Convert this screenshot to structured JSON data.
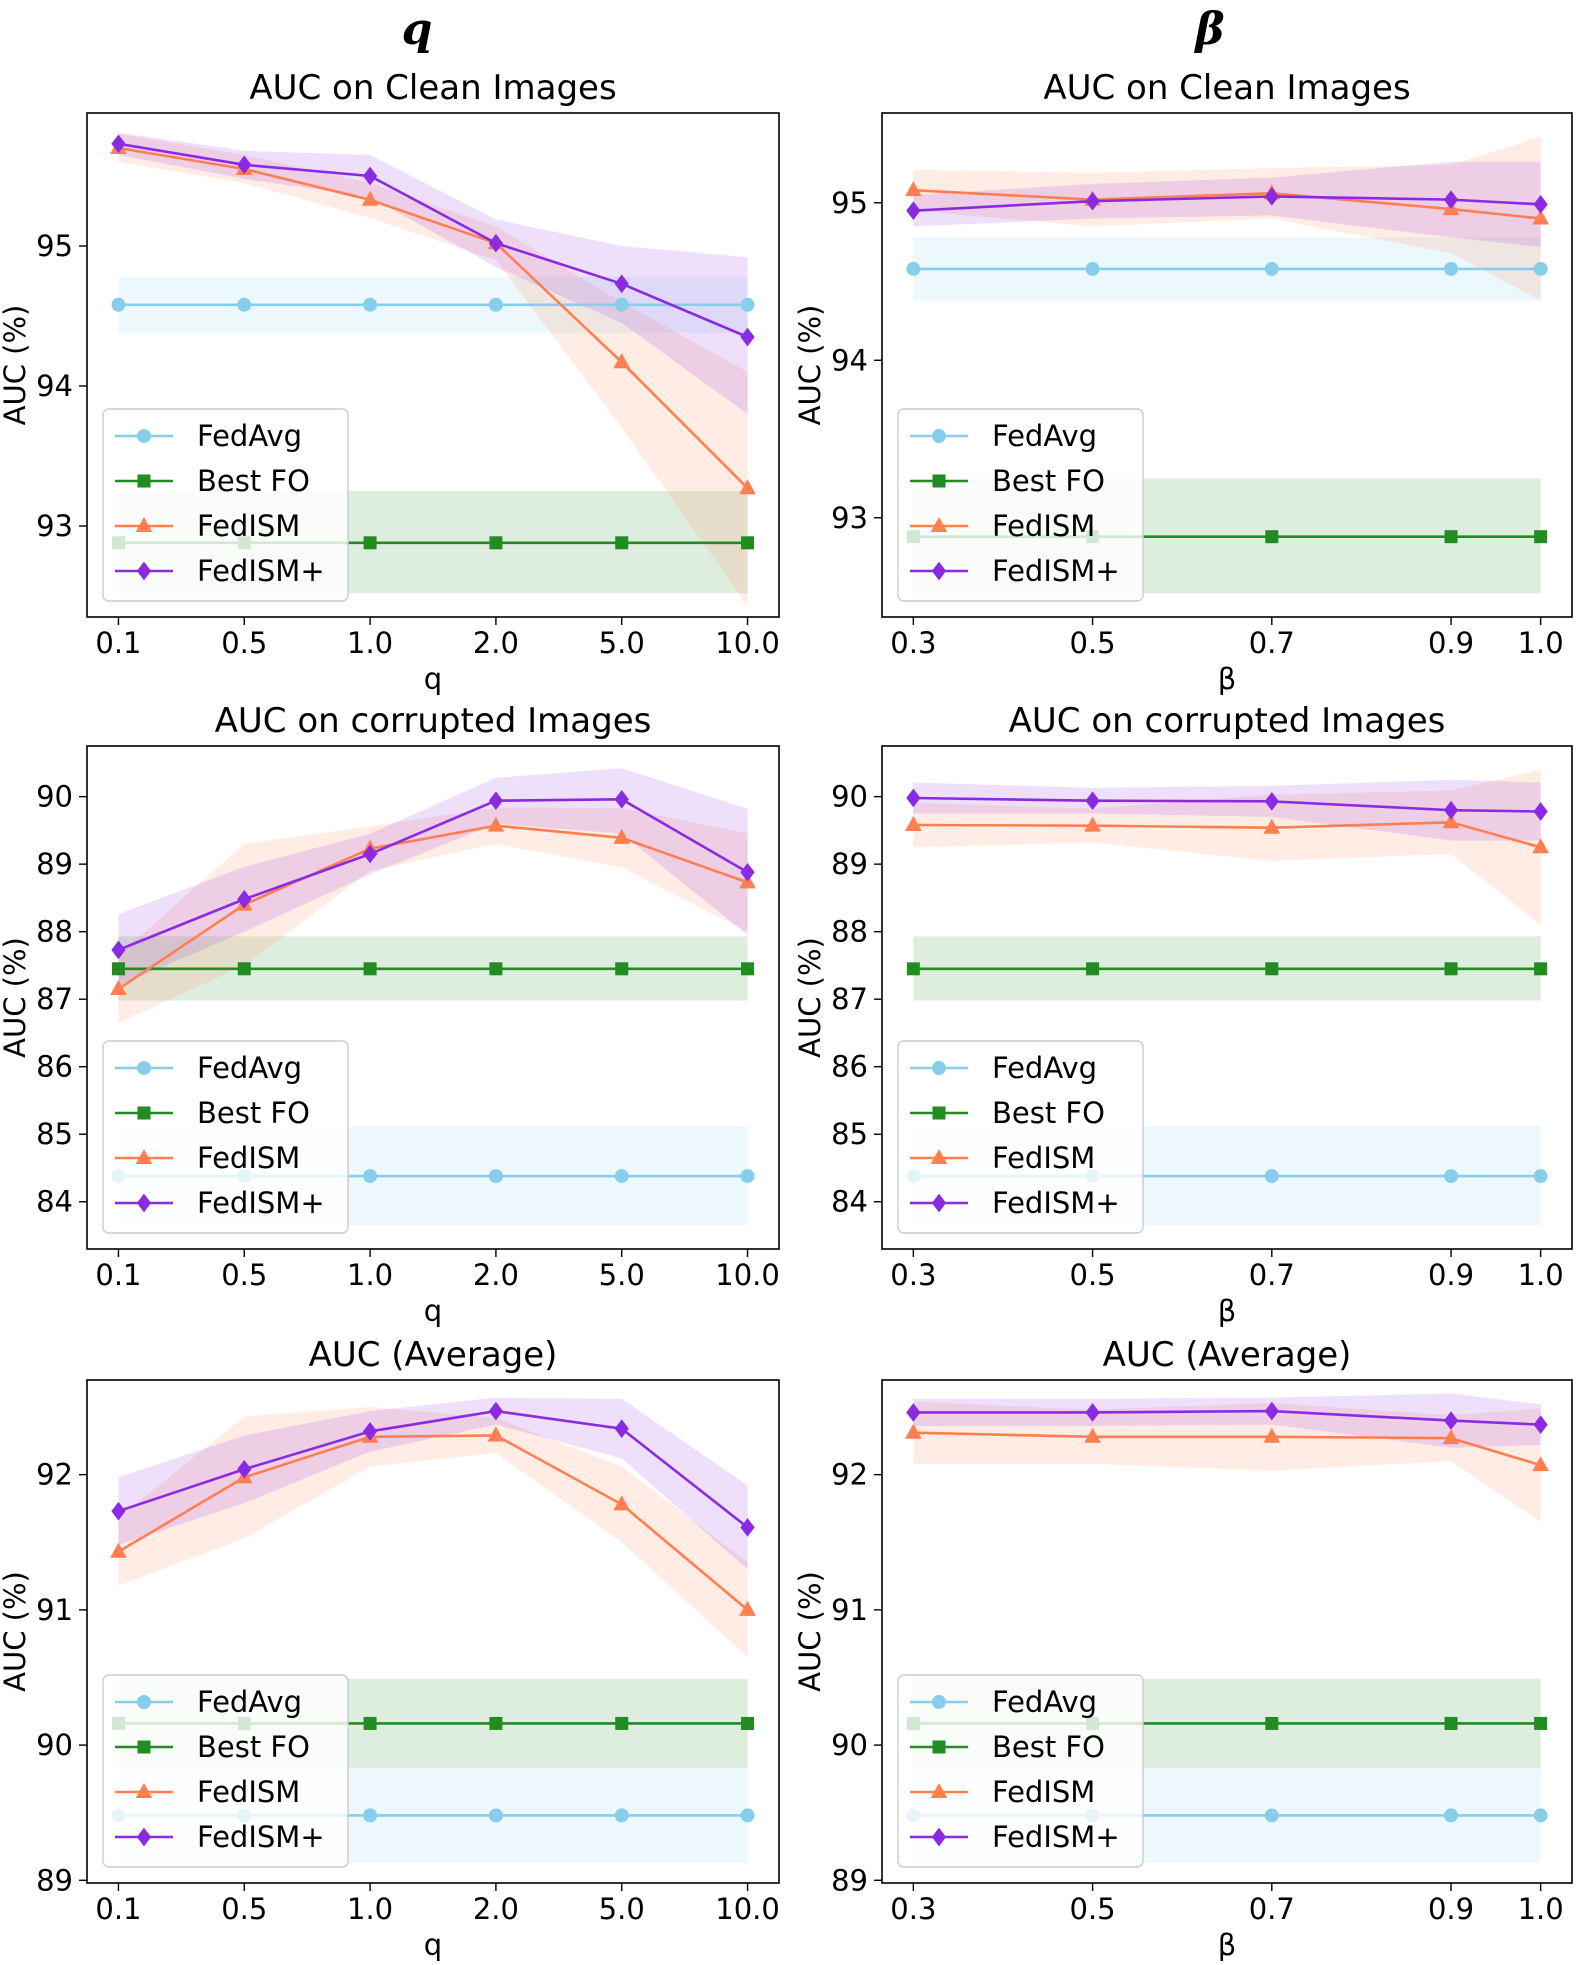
{
  "column_titles": [
    "q",
    "β"
  ],
  "series_styles": {
    "FedAvg": {
      "color": "#87ceeb",
      "marker": "circle"
    },
    "Best FO": {
      "color": "#228b22",
      "marker": "square"
    },
    "FedISM": {
      "color": "#ff7f50",
      "marker": "triangle"
    },
    "FedISM+": {
      "color": "#8a2be2",
      "marker": "diamond"
    }
  },
  "chart_data": [
    {
      "type": "line",
      "title": "AUC on Clean Images",
      "xlabel": "q",
      "ylabel": "AUC (%)",
      "categories": [
        "0.1",
        "0.5",
        "1.0",
        "2.0",
        "5.0",
        "10.0"
      ],
      "x": [
        0,
        1,
        2,
        3,
        4,
        5
      ],
      "xlim": [
        -0.25,
        5.25
      ],
      "ylim": [
        92.35,
        95.95
      ],
      "yticks": [
        93,
        94,
        95
      ],
      "legend": "lower-left",
      "series": [
        {
          "name": "FedAvg",
          "values": [
            94.58,
            94.58,
            94.58,
            94.58,
            94.58,
            94.58
          ],
          "lower": [
            94.38,
            94.38,
            94.38,
            94.38,
            94.38,
            94.38
          ],
          "upper": [
            94.78,
            94.78,
            94.78,
            94.78,
            94.78,
            94.78
          ]
        },
        {
          "name": "Best FO",
          "values": [
            92.88,
            92.88,
            92.88,
            92.88,
            92.88,
            92.88
          ],
          "lower": [
            92.52,
            92.52,
            92.52,
            92.52,
            92.52,
            92.52
          ],
          "upper": [
            93.25,
            93.25,
            93.25,
            93.25,
            93.25,
            93.25
          ]
        },
        {
          "name": "FedISM",
          "values": [
            95.7,
            95.55,
            95.33,
            95.02,
            94.17,
            93.27
          ],
          "lower": [
            95.6,
            95.45,
            95.2,
            94.9,
            93.7,
            92.43
          ],
          "upper": [
            95.8,
            95.65,
            95.45,
            95.14,
            94.6,
            94.1
          ]
        },
        {
          "name": "FedISM+",
          "values": [
            95.73,
            95.58,
            95.5,
            95.02,
            94.73,
            94.35
          ],
          "lower": [
            95.65,
            95.48,
            95.35,
            94.85,
            94.45,
            93.8
          ],
          "upper": [
            95.81,
            95.68,
            95.65,
            95.19,
            95.0,
            94.92
          ]
        }
      ]
    },
    {
      "type": "line",
      "title": "AUC on Clean Images",
      "xlabel": "β",
      "ylabel": "AUC (%)",
      "categories": [
        "0.3",
        "0.5",
        "0.7",
        "0.9",
        "1.0"
      ],
      "x": [
        0.3,
        0.5,
        0.7,
        0.9,
        1.0
      ],
      "xlim": [
        0.265,
        1.035
      ],
      "ylim": [
        92.37,
        95.57
      ],
      "yticks": [
        93,
        94,
        95
      ],
      "legend": "lower-left",
      "series": [
        {
          "name": "FedAvg",
          "values": [
            94.58,
            94.58,
            94.58,
            94.58,
            94.58
          ],
          "lower": [
            94.38,
            94.38,
            94.38,
            94.38,
            94.38
          ],
          "upper": [
            94.78,
            94.78,
            94.78,
            94.78,
            94.78
          ]
        },
        {
          "name": "Best FO",
          "values": [
            92.88,
            92.88,
            92.88,
            92.88,
            92.88
          ],
          "lower": [
            92.52,
            92.52,
            92.52,
            92.52,
            92.52
          ],
          "upper": [
            93.25,
            93.25,
            93.25,
            93.25,
            93.25
          ]
        },
        {
          "name": "FedISM",
          "values": [
            95.08,
            95.02,
            95.06,
            94.96,
            94.9
          ],
          "lower": [
            94.95,
            94.85,
            94.9,
            94.68,
            94.38
          ],
          "upper": [
            95.21,
            95.19,
            95.22,
            95.24,
            95.42
          ]
        },
        {
          "name": "FedISM+",
          "values": [
            94.95,
            95.01,
            95.04,
            95.02,
            94.99
          ],
          "lower": [
            94.85,
            94.9,
            94.92,
            94.78,
            94.72
          ],
          "upper": [
            95.05,
            95.12,
            95.16,
            95.26,
            95.26
          ]
        }
      ]
    },
    {
      "type": "line",
      "title": "AUC on corrupted Images",
      "xlabel": "q",
      "ylabel": "AUC (%)",
      "categories": [
        "0.1",
        "0.5",
        "1.0",
        "2.0",
        "5.0",
        "10.0"
      ],
      "x": [
        0,
        1,
        2,
        3,
        4,
        5
      ],
      "xlim": [
        -0.25,
        5.25
      ],
      "ylim": [
        83.3,
        90.75
      ],
      "yticks": [
        84,
        85,
        86,
        87,
        88,
        89,
        90
      ],
      "legend": "lower-left",
      "series": [
        {
          "name": "FedAvg",
          "values": [
            84.38,
            84.38,
            84.38,
            84.38,
            84.38,
            84.38
          ],
          "lower": [
            83.65,
            83.65,
            83.65,
            83.65,
            83.65,
            83.65
          ],
          "upper": [
            85.12,
            85.12,
            85.12,
            85.12,
            85.12,
            85.12
          ]
        },
        {
          "name": "Best FO",
          "values": [
            87.45,
            87.45,
            87.45,
            87.45,
            87.45,
            87.45
          ],
          "lower": [
            86.98,
            86.98,
            86.98,
            86.98,
            86.98,
            86.98
          ],
          "upper": [
            87.93,
            87.93,
            87.93,
            87.93,
            87.93,
            87.93
          ]
        },
        {
          "name": "FedISM",
          "values": [
            87.15,
            88.4,
            89.23,
            89.57,
            89.39,
            88.73
          ],
          "lower": [
            86.65,
            87.5,
            88.9,
            89.3,
            88.95,
            88.0
          ],
          "upper": [
            87.65,
            89.3,
            89.56,
            89.84,
            89.83,
            89.46
          ]
        },
        {
          "name": "FedISM+",
          "values": [
            87.73,
            88.48,
            89.15,
            89.94,
            89.96,
            88.88
          ],
          "lower": [
            87.2,
            88.0,
            88.85,
            89.6,
            89.45,
            87.95
          ],
          "upper": [
            88.26,
            88.96,
            89.45,
            90.28,
            90.42,
            89.82
          ]
        }
      ]
    },
    {
      "type": "line",
      "title": "AUC on corrupted Images",
      "xlabel": "β",
      "ylabel": "AUC (%)",
      "categories": [
        "0.3",
        "0.5",
        "0.7",
        "0.9",
        "1.0"
      ],
      "x": [
        0.3,
        0.5,
        0.7,
        0.9,
        1.0
      ],
      "xlim": [
        0.265,
        1.035
      ],
      "ylim": [
        83.3,
        90.75
      ],
      "yticks": [
        84,
        85,
        86,
        87,
        88,
        89,
        90
      ],
      "legend": "lower-left",
      "series": [
        {
          "name": "FedAvg",
          "values": [
            84.38,
            84.38,
            84.38,
            84.38,
            84.38
          ],
          "lower": [
            83.65,
            83.65,
            83.65,
            83.65,
            83.65
          ],
          "upper": [
            85.12,
            85.12,
            85.12,
            85.12,
            85.12
          ]
        },
        {
          "name": "Best FO",
          "values": [
            87.45,
            87.45,
            87.45,
            87.45,
            87.45
          ],
          "lower": [
            86.98,
            86.98,
            86.98,
            86.98,
            86.98
          ],
          "upper": [
            87.93,
            87.93,
            87.93,
            87.93,
            87.93
          ]
        },
        {
          "name": "FedISM",
          "values": [
            89.58,
            89.57,
            89.54,
            89.62,
            89.25
          ],
          "lower": [
            89.25,
            89.32,
            89.05,
            89.15,
            88.1
          ],
          "upper": [
            89.91,
            89.82,
            90.03,
            90.09,
            90.4
          ]
        },
        {
          "name": "FedISM+",
          "values": [
            89.98,
            89.94,
            89.93,
            89.8,
            89.78
          ],
          "lower": [
            89.75,
            89.75,
            89.7,
            89.35,
            89.35
          ],
          "upper": [
            90.21,
            90.13,
            90.16,
            90.25,
            90.21
          ]
        }
      ]
    },
    {
      "type": "line",
      "title": "AUC (Average)",
      "xlabel": "q",
      "ylabel": "AUC (%)",
      "categories": [
        "0.1",
        "0.5",
        "1.0",
        "2.0",
        "5.0",
        "10.0"
      ],
      "x": [
        0,
        1,
        2,
        3,
        4,
        5
      ],
      "xlim": [
        -0.25,
        5.25
      ],
      "ylim": [
        88.98,
        92.7
      ],
      "yticks": [
        89,
        90,
        91,
        92
      ],
      "legend": "lower-left",
      "series": [
        {
          "name": "FedAvg",
          "values": [
            89.48,
            89.48,
            89.48,
            89.48,
            89.48,
            89.48
          ],
          "lower": [
            89.13,
            89.13,
            89.13,
            89.13,
            89.13,
            89.13
          ],
          "upper": [
            89.83,
            89.83,
            89.83,
            89.83,
            89.83,
            89.83
          ]
        },
        {
          "name": "Best FO",
          "values": [
            90.16,
            90.16,
            90.16,
            90.16,
            90.16,
            90.16
          ],
          "lower": [
            89.83,
            89.83,
            89.83,
            89.83,
            89.83,
            89.83
          ],
          "upper": [
            90.49,
            90.49,
            90.49,
            90.49,
            90.49,
            90.49
          ]
        },
        {
          "name": "FedISM",
          "values": [
            91.43,
            91.98,
            92.28,
            92.29,
            91.78,
            91.0
          ],
          "lower": [
            91.18,
            91.53,
            92.06,
            92.16,
            91.5,
            90.65
          ],
          "upper": [
            91.68,
            92.43,
            92.5,
            92.42,
            92.06,
            91.35
          ]
        },
        {
          "name": "FedISM+",
          "values": [
            91.73,
            92.04,
            92.32,
            92.47,
            92.34,
            91.61
          ],
          "lower": [
            91.48,
            91.79,
            92.17,
            92.37,
            92.12,
            91.3
          ],
          "upper": [
            91.98,
            92.29,
            92.47,
            92.57,
            92.56,
            91.92
          ]
        }
      ]
    },
    {
      "type": "line",
      "title": "AUC (Average)",
      "xlabel": "β",
      "ylabel": "AUC (%)",
      "categories": [
        "0.3",
        "0.5",
        "0.7",
        "0.9",
        "1.0"
      ],
      "x": [
        0.3,
        0.5,
        0.7,
        0.9,
        1.0
      ],
      "xlim": [
        0.265,
        1.035
      ],
      "ylim": [
        88.98,
        92.7
      ],
      "yticks": [
        89,
        90,
        91,
        92
      ],
      "legend": "lower-left",
      "series": [
        {
          "name": "FedAvg",
          "values": [
            89.48,
            89.48,
            89.48,
            89.48,
            89.48
          ],
          "lower": [
            89.13,
            89.13,
            89.13,
            89.13,
            89.13
          ],
          "upper": [
            89.83,
            89.83,
            89.83,
            89.83,
            89.83
          ]
        },
        {
          "name": "Best FO",
          "values": [
            90.16,
            90.16,
            90.16,
            90.16,
            90.16
          ],
          "lower": [
            89.83,
            89.83,
            89.83,
            89.83,
            89.83
          ],
          "upper": [
            90.49,
            90.49,
            90.49,
            90.49,
            90.49
          ]
        },
        {
          "name": "FedISM",
          "values": [
            92.31,
            92.28,
            92.28,
            92.27,
            92.07
          ],
          "lower": [
            92.08,
            92.08,
            92.03,
            92.1,
            91.65
          ],
          "upper": [
            92.54,
            92.48,
            92.53,
            92.44,
            92.49
          ]
        },
        {
          "name": "FedISM+",
          "values": [
            92.46,
            92.46,
            92.47,
            92.4,
            92.37
          ],
          "lower": [
            92.36,
            92.36,
            92.37,
            92.2,
            92.22
          ],
          "upper": [
            92.56,
            92.56,
            92.57,
            92.6,
            92.52
          ]
        }
      ]
    }
  ]
}
